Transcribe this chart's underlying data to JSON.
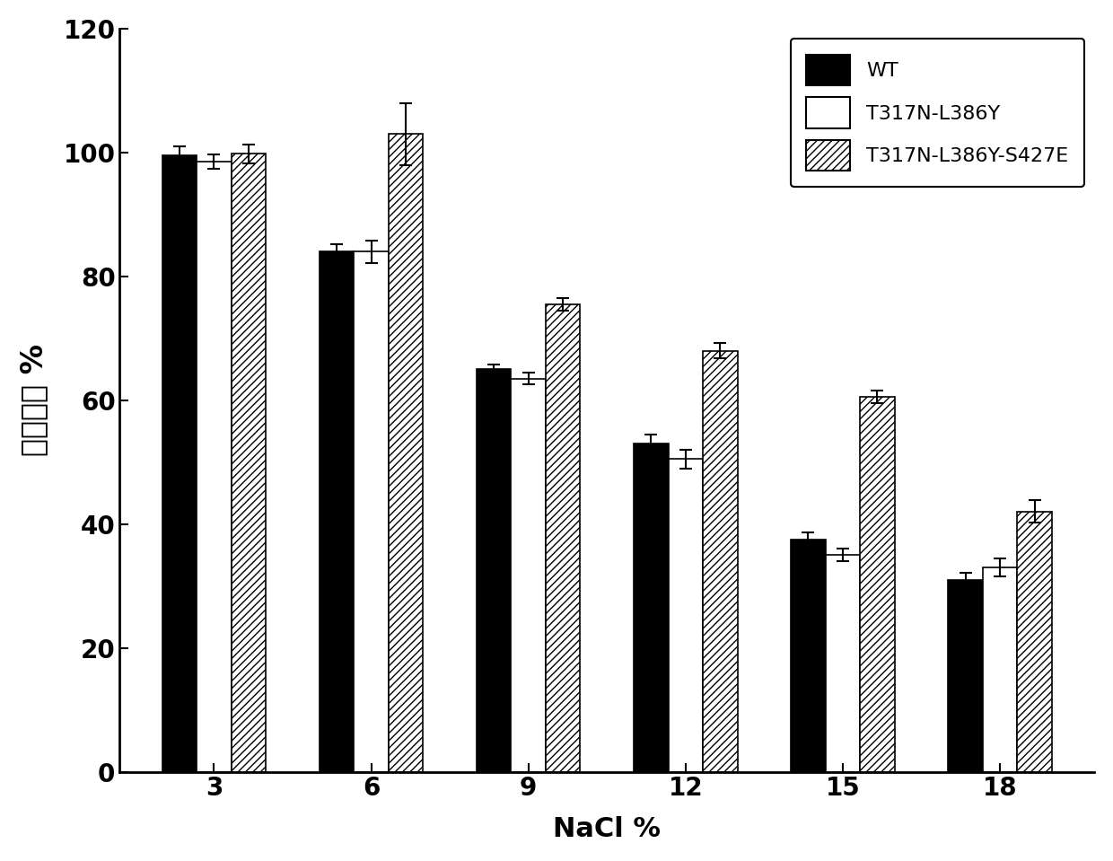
{
  "categories": [
    "3",
    "6",
    "9",
    "12",
    "15",
    "18"
  ],
  "wt_values": [
    99.5,
    84.0,
    65.0,
    53.0,
    37.5,
    31.0
  ],
  "wt_errors": [
    1.5,
    1.2,
    0.8,
    1.5,
    1.2,
    1.2
  ],
  "t317n_values": [
    98.5,
    84.0,
    63.5,
    50.5,
    35.0,
    33.0
  ],
  "t317n_errors": [
    1.2,
    1.8,
    1.0,
    1.5,
    1.0,
    1.5
  ],
  "triple_values": [
    99.8,
    103.0,
    75.5,
    68.0,
    60.5,
    42.0
  ],
  "triple_errors": [
    1.5,
    5.0,
    1.0,
    1.2,
    1.0,
    1.8
  ],
  "ylabel": "相对酵活 %",
  "xlabel": "NaCl %",
  "ylim": [
    0,
    120
  ],
  "yticks": [
    0,
    20,
    40,
    60,
    80,
    100,
    120
  ],
  "legend_labels": [
    "WT",
    "T317N-L386Y",
    "T317N-L386Y-S427E"
  ],
  "bar_width": 0.22,
  "wt_color": "#000000",
  "t317n_color": "#ffffff",
  "triple_color": "#ffffff",
  "edge_color": "#000000",
  "hatch_triple": "////",
  "figsize": [
    12.4,
    9.59
  ],
  "dpi": 100,
  "bg_color": "#ffffff"
}
